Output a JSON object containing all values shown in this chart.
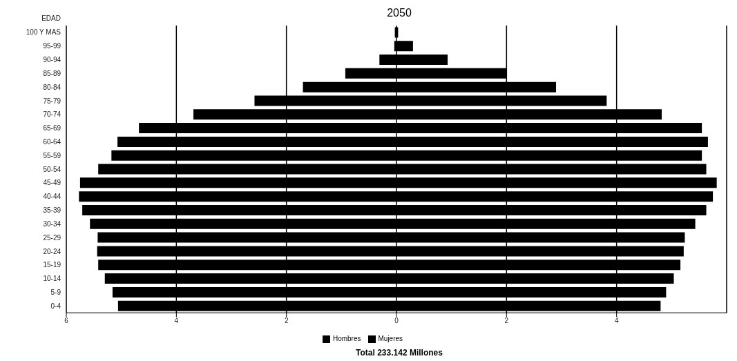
{
  "chart_data": {
    "type": "bar",
    "orientation": "horizontal",
    "stacked": true,
    "title": "2050",
    "ylabel": "EDAD",
    "annotations": [
      "Total 233.142 Millones"
    ],
    "categories": [
      "100 Y MAS",
      "95-99",
      "90-94",
      "85-89",
      "80-84",
      "75-79",
      "70-74",
      "65-69",
      "60-64",
      "55-59",
      "50-54",
      "45-49",
      "40-44",
      "35-39",
      "30-34",
      "25-29",
      "20-24",
      "15-19",
      "10-14",
      "5-9",
      "0-4"
    ],
    "series": [
      {
        "name": "Hombres",
        "color": "#000000",
        "values": [
          -0.03,
          -0.04,
          -0.31,
          -0.93,
          -1.7,
          -2.58,
          -3.69,
          -4.68,
          -5.07,
          -5.18,
          -5.42,
          -5.75,
          -5.77,
          -5.71,
          -5.57,
          -5.43,
          -5.44,
          -5.42,
          -5.3,
          -5.16,
          -5.06
        ]
      },
      {
        "name": "Mujeres",
        "color": "#000000",
        "values": [
          0.03,
          0.3,
          0.93,
          2.0,
          2.9,
          3.82,
          4.82,
          5.55,
          5.66,
          5.55,
          5.63,
          5.82,
          5.75,
          5.63,
          5.43,
          5.24,
          5.22,
          5.16,
          5.04,
          4.9,
          4.8
        ]
      }
    ],
    "xlim": [
      -6,
      6
    ],
    "xticks": [
      {
        "value": -6,
        "label": "6"
      },
      {
        "value": -4,
        "label": "4"
      },
      {
        "value": -2,
        "label": "2"
      },
      0,
      2,
      4
    ],
    "grid": "x",
    "legend": "bottom"
  }
}
